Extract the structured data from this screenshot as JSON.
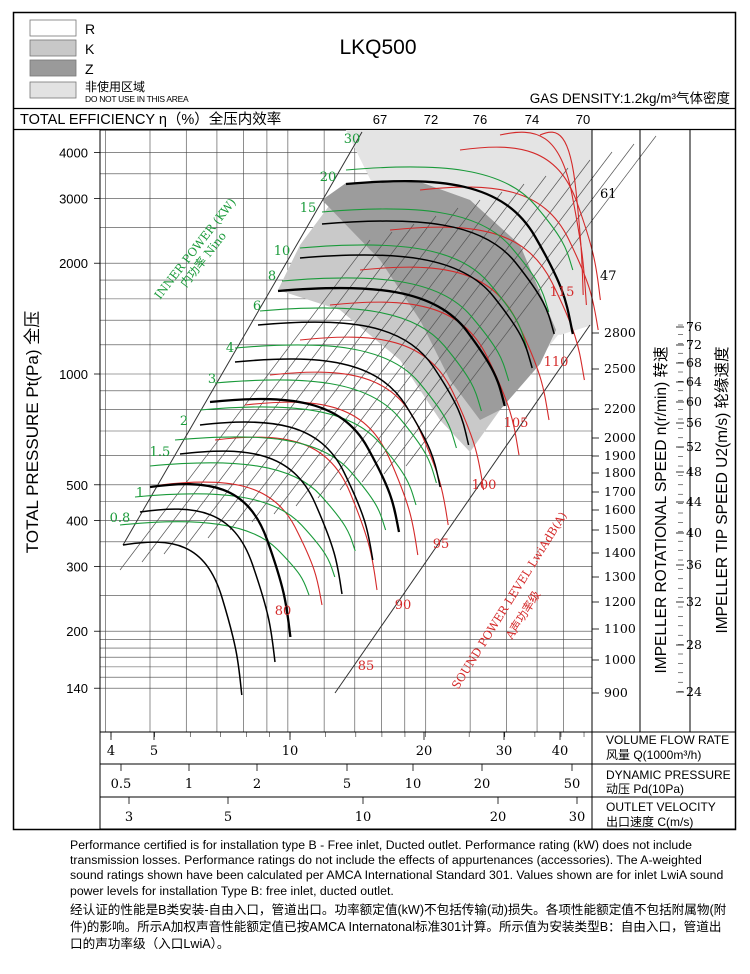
{
  "header": {
    "title": "LKQ500",
    "gas_density": "GAS DENSITY:1.2kg/m³气体密度",
    "legend": [
      {
        "key": "R",
        "label": "R",
        "color": "#ffffff"
      },
      {
        "key": "K",
        "label": "K",
        "color": "#c8c8c8"
      },
      {
        "key": "Z",
        "label": "Z",
        "color": "#9a9a9a"
      },
      {
        "key": "N",
        "label": "非使用区域",
        "sublabel": "DO NOT USE IN THIS AREA",
        "color": "#e2e2e2"
      }
    ]
  },
  "efficiency_bar": {
    "title": "TOTAL EFFICIENCY η（%）全压内效率",
    "values": [
      "67",
      "72",
      "76",
      "74",
      "70"
    ]
  },
  "chart_data": {
    "type": "line",
    "ylabel": "TOTAL PRESSURE Pt(Pa) 全压",
    "yscale": "log",
    "y_ticks": [
      "4000",
      "3000",
      "2000",
      "1000",
      "500",
      "400",
      "300",
      "200",
      "140"
    ],
    "y_tick_values": [
      4000,
      3000,
      2000,
      1000,
      500,
      400,
      300,
      200,
      140
    ],
    "x_axis": {
      "label": "VOLUME FLOW RATE",
      "label_cn": "风量 Q(1000m³/h)",
      "scale": "log",
      "ticks": [
        "4",
        "5",
        "10",
        "20",
        "30",
        "40"
      ],
      "tick_values": [
        4,
        5,
        10,
        20,
        30,
        40
      ]
    },
    "dynamic_pressure_axis": {
      "label": "DYNAMIC PRESSURE",
      "label_cn": "动压 Pd(10Pa)",
      "ticks": [
        "0.5",
        "1",
        "2",
        "5",
        "10",
        "20",
        "50"
      ]
    },
    "outlet_velocity_axis": {
      "label": "OUTLET VELOCITY",
      "label_cn": "出口速度 C(m/s)",
      "ticks": [
        "3",
        "5",
        "10",
        "20",
        "30"
      ]
    },
    "rotational_speed_axis": {
      "label": "IMPELLER ROTATIONAL SPEED n(r/min) 转速",
      "ticks": [
        "2800",
        "2500",
        "2200",
        "2000",
        "1900",
        "1800",
        "1700",
        "1600",
        "1500",
        "1400",
        "1300",
        "1200",
        "1100",
        "1000",
        "900"
      ],
      "upper_labels": [
        "61",
        "47"
      ]
    },
    "tip_speed_axis": {
      "label": "IMPELLER TIP SPEED U2(m/s) 轮缘速度",
      "ticks": [
        "76",
        "72",
        "68",
        "64",
        "60",
        "56",
        "52",
        "48",
        "44",
        "40",
        "36",
        "32",
        "28",
        "24"
      ]
    },
    "inner_power": {
      "label": "INNER POWER (KW)",
      "label_cn": "内功率 Nino",
      "values": [
        "30",
        "20",
        "15",
        "10",
        "8",
        "6",
        "4",
        "3",
        "2",
        "1.5",
        "1",
        "0.8"
      ]
    },
    "sound_power": {
      "label": "SOUND POWER LEVEL LwiAdB(A)",
      "label_cn": "A声功率级",
      "values": [
        "115",
        "110",
        "105",
        "100",
        "95",
        "90",
        "85",
        "80"
      ]
    }
  },
  "footer": {
    "en": "Performance certified is for installation type B - Free inlet, Ducted outlet. Performance rating (kW) does not include transmission losses. Performance ratings do not include the effects of appurtenances (accessories). The A-weighted sound ratings shown have been calculated per AMCA International Standard 301. Values shown are for inlet LwiA sound power levels for installation Type B: free inlet, ducted outlet.",
    "cn": "经认证的性能是B类安装-自由入口，管道出口。功率额定值(kW)不包括传输(动)损失。各项性能额定值不包括附属物(附件)的影响。所示A加权声音性能额定值已按AMCA Internatonal标准301计算。所示值为安装类型B：自由入口，管道出口的声功率级（入口LwiA）。"
  }
}
